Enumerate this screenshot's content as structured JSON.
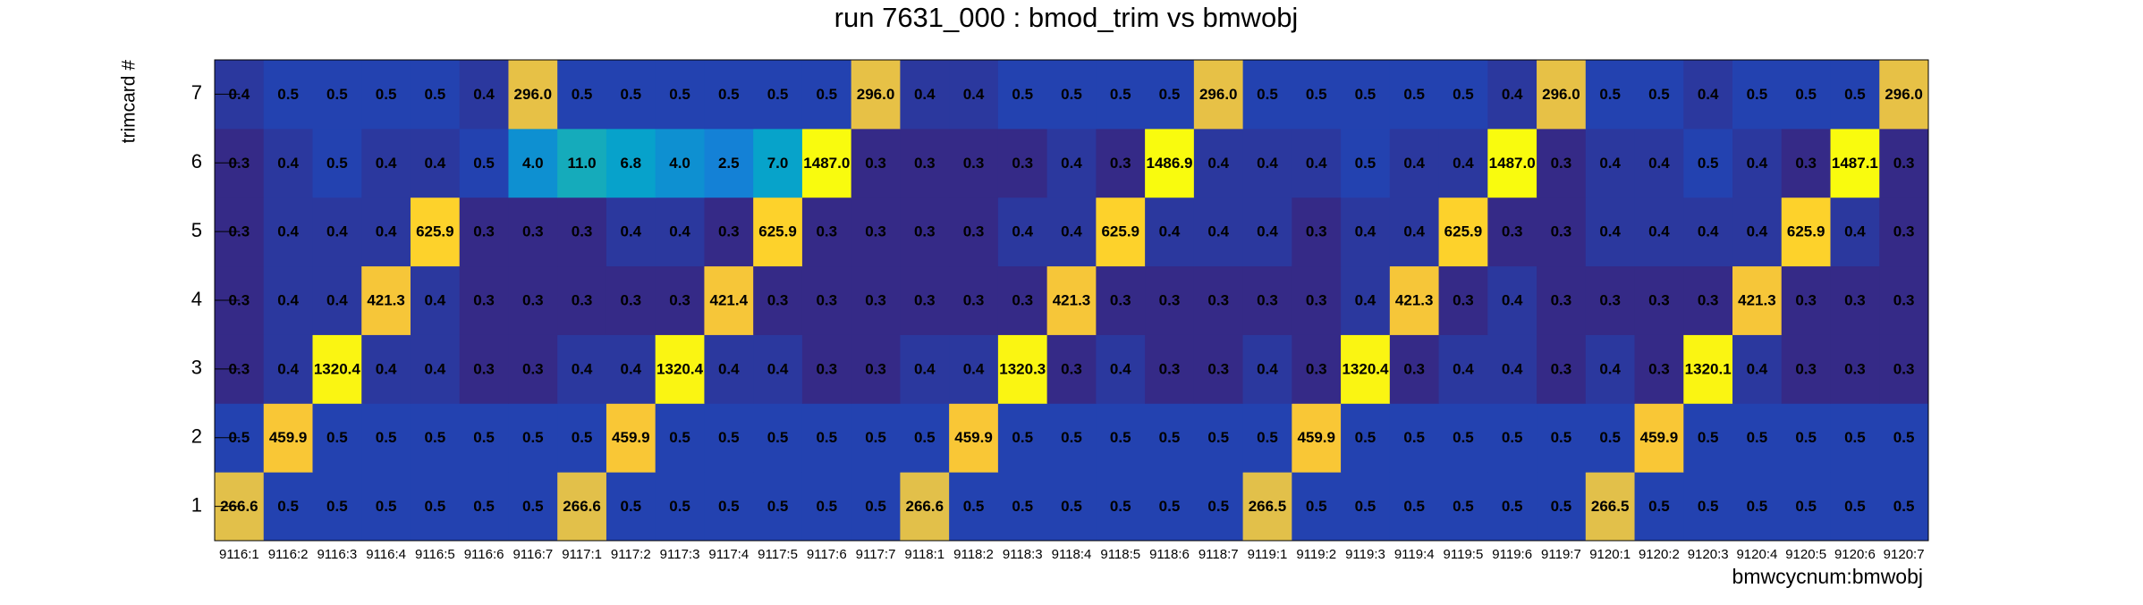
{
  "chart_data": {
    "type": "heatmap",
    "title": "run 7631_000 : bmod_trim vs bmwobj",
    "x_label": "bmwcycnum:bmwobj",
    "y_label": "trimcard #",
    "categories": [
      "9116:1",
      "9116:2",
      "9116:3",
      "9116:4",
      "9116:5",
      "9116:6",
      "9116:7",
      "9117:1",
      "9117:2",
      "9117:3",
      "9117:4",
      "9117:5",
      "9117:6",
      "9117:7",
      "9118:1",
      "9118:2",
      "9118:3",
      "9118:4",
      "9118:5",
      "9118:6",
      "9118:7",
      "9119:1",
      "9119:2",
      "9119:3",
      "9119:4",
      "9119:5",
      "9119:6",
      "9119:7",
      "9120:1",
      "9120:2",
      "9120:3",
      "9120:4",
      "9120:5",
      "9120:6",
      "9120:7"
    ],
    "y_categories": [
      1,
      2,
      3,
      4,
      5,
      6,
      7
    ],
    "values": [
      [
        266.6,
        0.5,
        0.5,
        0.5,
        0.5,
        0.5,
        0.5,
        266.6,
        0.5,
        0.5,
        0.5,
        0.5,
        0.5,
        0.5,
        266.6,
        0.5,
        0.5,
        0.5,
        0.5,
        0.5,
        0.5,
        266.5,
        0.5,
        0.5,
        0.5,
        0.5,
        0.5,
        0.5,
        266.5,
        0.5,
        0.5,
        0.5,
        0.5,
        0.5,
        0.5
      ],
      [
        0.5,
        459.9,
        0.5,
        0.5,
        0.5,
        0.5,
        0.5,
        0.5,
        459.9,
        0.5,
        0.5,
        0.5,
        0.5,
        0.5,
        0.5,
        459.9,
        0.5,
        0.5,
        0.5,
        0.5,
        0.5,
        0.5,
        459.9,
        0.5,
        0.5,
        0.5,
        0.5,
        0.5,
        0.5,
        459.9,
        0.5,
        0.5,
        0.5,
        0.5,
        0.5
      ],
      [
        0.3,
        0.4,
        1320.4,
        0.4,
        0.4,
        0.3,
        0.3,
        0.4,
        0.4,
        1320.4,
        0.4,
        0.4,
        0.3,
        0.3,
        0.4,
        0.4,
        1320.3,
        0.3,
        0.4,
        0.3,
        0.3,
        0.4,
        0.3,
        1320.4,
        0.3,
        0.4,
        0.4,
        0.3,
        0.4,
        0.3,
        1320.1,
        0.4,
        0.3,
        0.3,
        0.3
      ],
      [
        0.3,
        0.4,
        0.4,
        421.3,
        0.4,
        0.3,
        0.3,
        0.3,
        0.3,
        0.3,
        421.4,
        0.3,
        0.3,
        0.3,
        0.3,
        0.3,
        0.3,
        421.3,
        0.3,
        0.3,
        0.3,
        0.3,
        0.3,
        0.4,
        421.3,
        0.3,
        0.4,
        0.3,
        0.3,
        0.3,
        0.3,
        421.3,
        0.3,
        0.3,
        0.3
      ],
      [
        0.3,
        0.4,
        0.4,
        0.4,
        625.9,
        0.3,
        0.3,
        0.3,
        0.4,
        0.4,
        0.3,
        625.9,
        0.3,
        0.3,
        0.3,
        0.3,
        0.4,
        0.4,
        625.9,
        0.4,
        0.4,
        0.4,
        0.3,
        0.4,
        0.4,
        625.9,
        0.3,
        0.3,
        0.4,
        0.4,
        0.4,
        0.4,
        625.9,
        0.4,
        0.3
      ],
      [
        0.3,
        0.4,
        0.5,
        0.4,
        0.4,
        0.5,
        4.0,
        11.0,
        6.8,
        4.0,
        2.5,
        7.0,
        1487.0,
        0.3,
        0.3,
        0.3,
        0.3,
        0.4,
        0.3,
        1486.9,
        0.4,
        0.4,
        0.4,
        0.5,
        0.4,
        0.4,
        1487.0,
        0.3,
        0.4,
        0.4,
        0.5,
        0.4,
        0.3,
        1487.1,
        0.3
      ],
      [
        0.4,
        0.5,
        0.5,
        0.5,
        0.5,
        0.4,
        296.0,
        0.5,
        0.5,
        0.5,
        0.5,
        0.5,
        0.5,
        296.0,
        0.4,
        0.4,
        0.5,
        0.5,
        0.5,
        0.5,
        296.0,
        0.5,
        0.5,
        0.5,
        0.5,
        0.5,
        0.4,
        296.0,
        0.5,
        0.5,
        0.4,
        0.5,
        0.5,
        0.5,
        296.0
      ]
    ],
    "value_labels": [
      [
        "266.6",
        "0.5",
        "0.5",
        "0.5",
        "0.5",
        "0.5",
        "0.5",
        "266.6",
        "0.5",
        "0.5",
        "0.5",
        "0.5",
        "0.5",
        "0.5",
        "266.6",
        "0.5",
        "0.5",
        "0.5",
        "0.5",
        "0.5",
        "0.5",
        "266.5",
        "0.5",
        "0.5",
        "0.5",
        "0.5",
        "0.5",
        "0.5",
        "266.5",
        "0.5",
        "0.5",
        "0.5",
        "0.5",
        "0.5",
        "0.5"
      ],
      [
        "0.5",
        "459.9",
        "0.5",
        "0.5",
        "0.5",
        "0.5",
        "0.5",
        "0.5",
        "459.9",
        "0.5",
        "0.5",
        "0.5",
        "0.5",
        "0.5",
        "0.5",
        "459.9",
        "0.5",
        "0.5",
        "0.5",
        "0.5",
        "0.5",
        "0.5",
        "459.9",
        "0.5",
        "0.5",
        "0.5",
        "0.5",
        "0.5",
        "0.5",
        "459.9",
        "0.5",
        "0.5",
        "0.5",
        "0.5",
        "0.5"
      ],
      [
        "0.3",
        "0.4",
        "1320.4",
        "0.4",
        "0.4",
        "0.3",
        "0.3",
        "0.4",
        "0.4",
        "1320.4",
        "0.4",
        "0.4",
        "0.3",
        "0.3",
        "0.4",
        "0.4",
        "1320.3",
        "0.3",
        "0.4",
        "0.3",
        "0.3",
        "0.4",
        "0.3",
        "1320.4",
        "0.3",
        "0.4",
        "0.4",
        "0.3",
        "0.4",
        "0.3",
        "1320.1",
        "0.4",
        "0.3",
        "0.3",
        "0.3"
      ],
      [
        "0.3",
        "0.4",
        "0.4",
        "421.3",
        "0.4",
        "0.3",
        "0.3",
        "0.3",
        "0.3",
        "0.3",
        "421.4",
        "0.3",
        "0.3",
        "0.3",
        "0.3",
        "0.3",
        "0.3",
        "421.3",
        "0.3",
        "0.3",
        "0.3",
        "0.3",
        "0.3",
        "0.4",
        "421.3",
        "0.3",
        "0.4",
        "0.3",
        "0.3",
        "0.3",
        "0.3",
        "421.3",
        "0.3",
        "0.3",
        "0.3"
      ],
      [
        "0.3",
        "0.4",
        "0.4",
        "0.4",
        "625.9",
        "0.3",
        "0.3",
        "0.3",
        "0.4",
        "0.4",
        "0.3",
        "625.9",
        "0.3",
        "0.3",
        "0.3",
        "0.3",
        "0.4",
        "0.4",
        "625.9",
        "0.4",
        "0.4",
        "0.4",
        "0.3",
        "0.4",
        "0.4",
        "625.9",
        "0.3",
        "0.3",
        "0.4",
        "0.4",
        "0.4",
        "0.4",
        "625.9",
        "0.4",
        "0.3"
      ],
      [
        "0.3",
        "0.4",
        "0.5",
        "0.4",
        "0.4",
        "0.5",
        "4.0",
        "11.0",
        "6.8",
        "4.0",
        "2.5",
        "7.0",
        "1487.0",
        "0.3",
        "0.3",
        "0.3",
        "0.3",
        "0.4",
        "0.3",
        "1486.9",
        "0.4",
        "0.4",
        "0.4",
        "0.5",
        "0.4",
        "0.4",
        "1487.0",
        "0.3",
        "0.4",
        "0.4",
        "0.5",
        "0.4",
        "0.3",
        "1487.1",
        "0.3"
      ],
      [
        "0.4",
        "0.5",
        "0.5",
        "0.5",
        "0.5",
        "0.4",
        "296.0",
        "0.5",
        "0.5",
        "0.5",
        "0.5",
        "0.5",
        "0.5",
        "296.0",
        "0.4",
        "0.4",
        "0.5",
        "0.5",
        "0.5",
        "0.5",
        "296.0",
        "0.5",
        "0.5",
        "0.5",
        "0.5",
        "0.5",
        "0.4",
        "296.0",
        "0.5",
        "0.5",
        "0.4",
        "0.5",
        "0.5",
        "0.5",
        "296.0"
      ]
    ],
    "zlog": true,
    "palette": [
      "#352a87",
      "#0f5cdd",
      "#1481d6",
      "#06a4ca",
      "#2eb7a4",
      "#87bf77",
      "#d1bb59",
      "#fec832",
      "#f9fb0e"
    ]
  }
}
